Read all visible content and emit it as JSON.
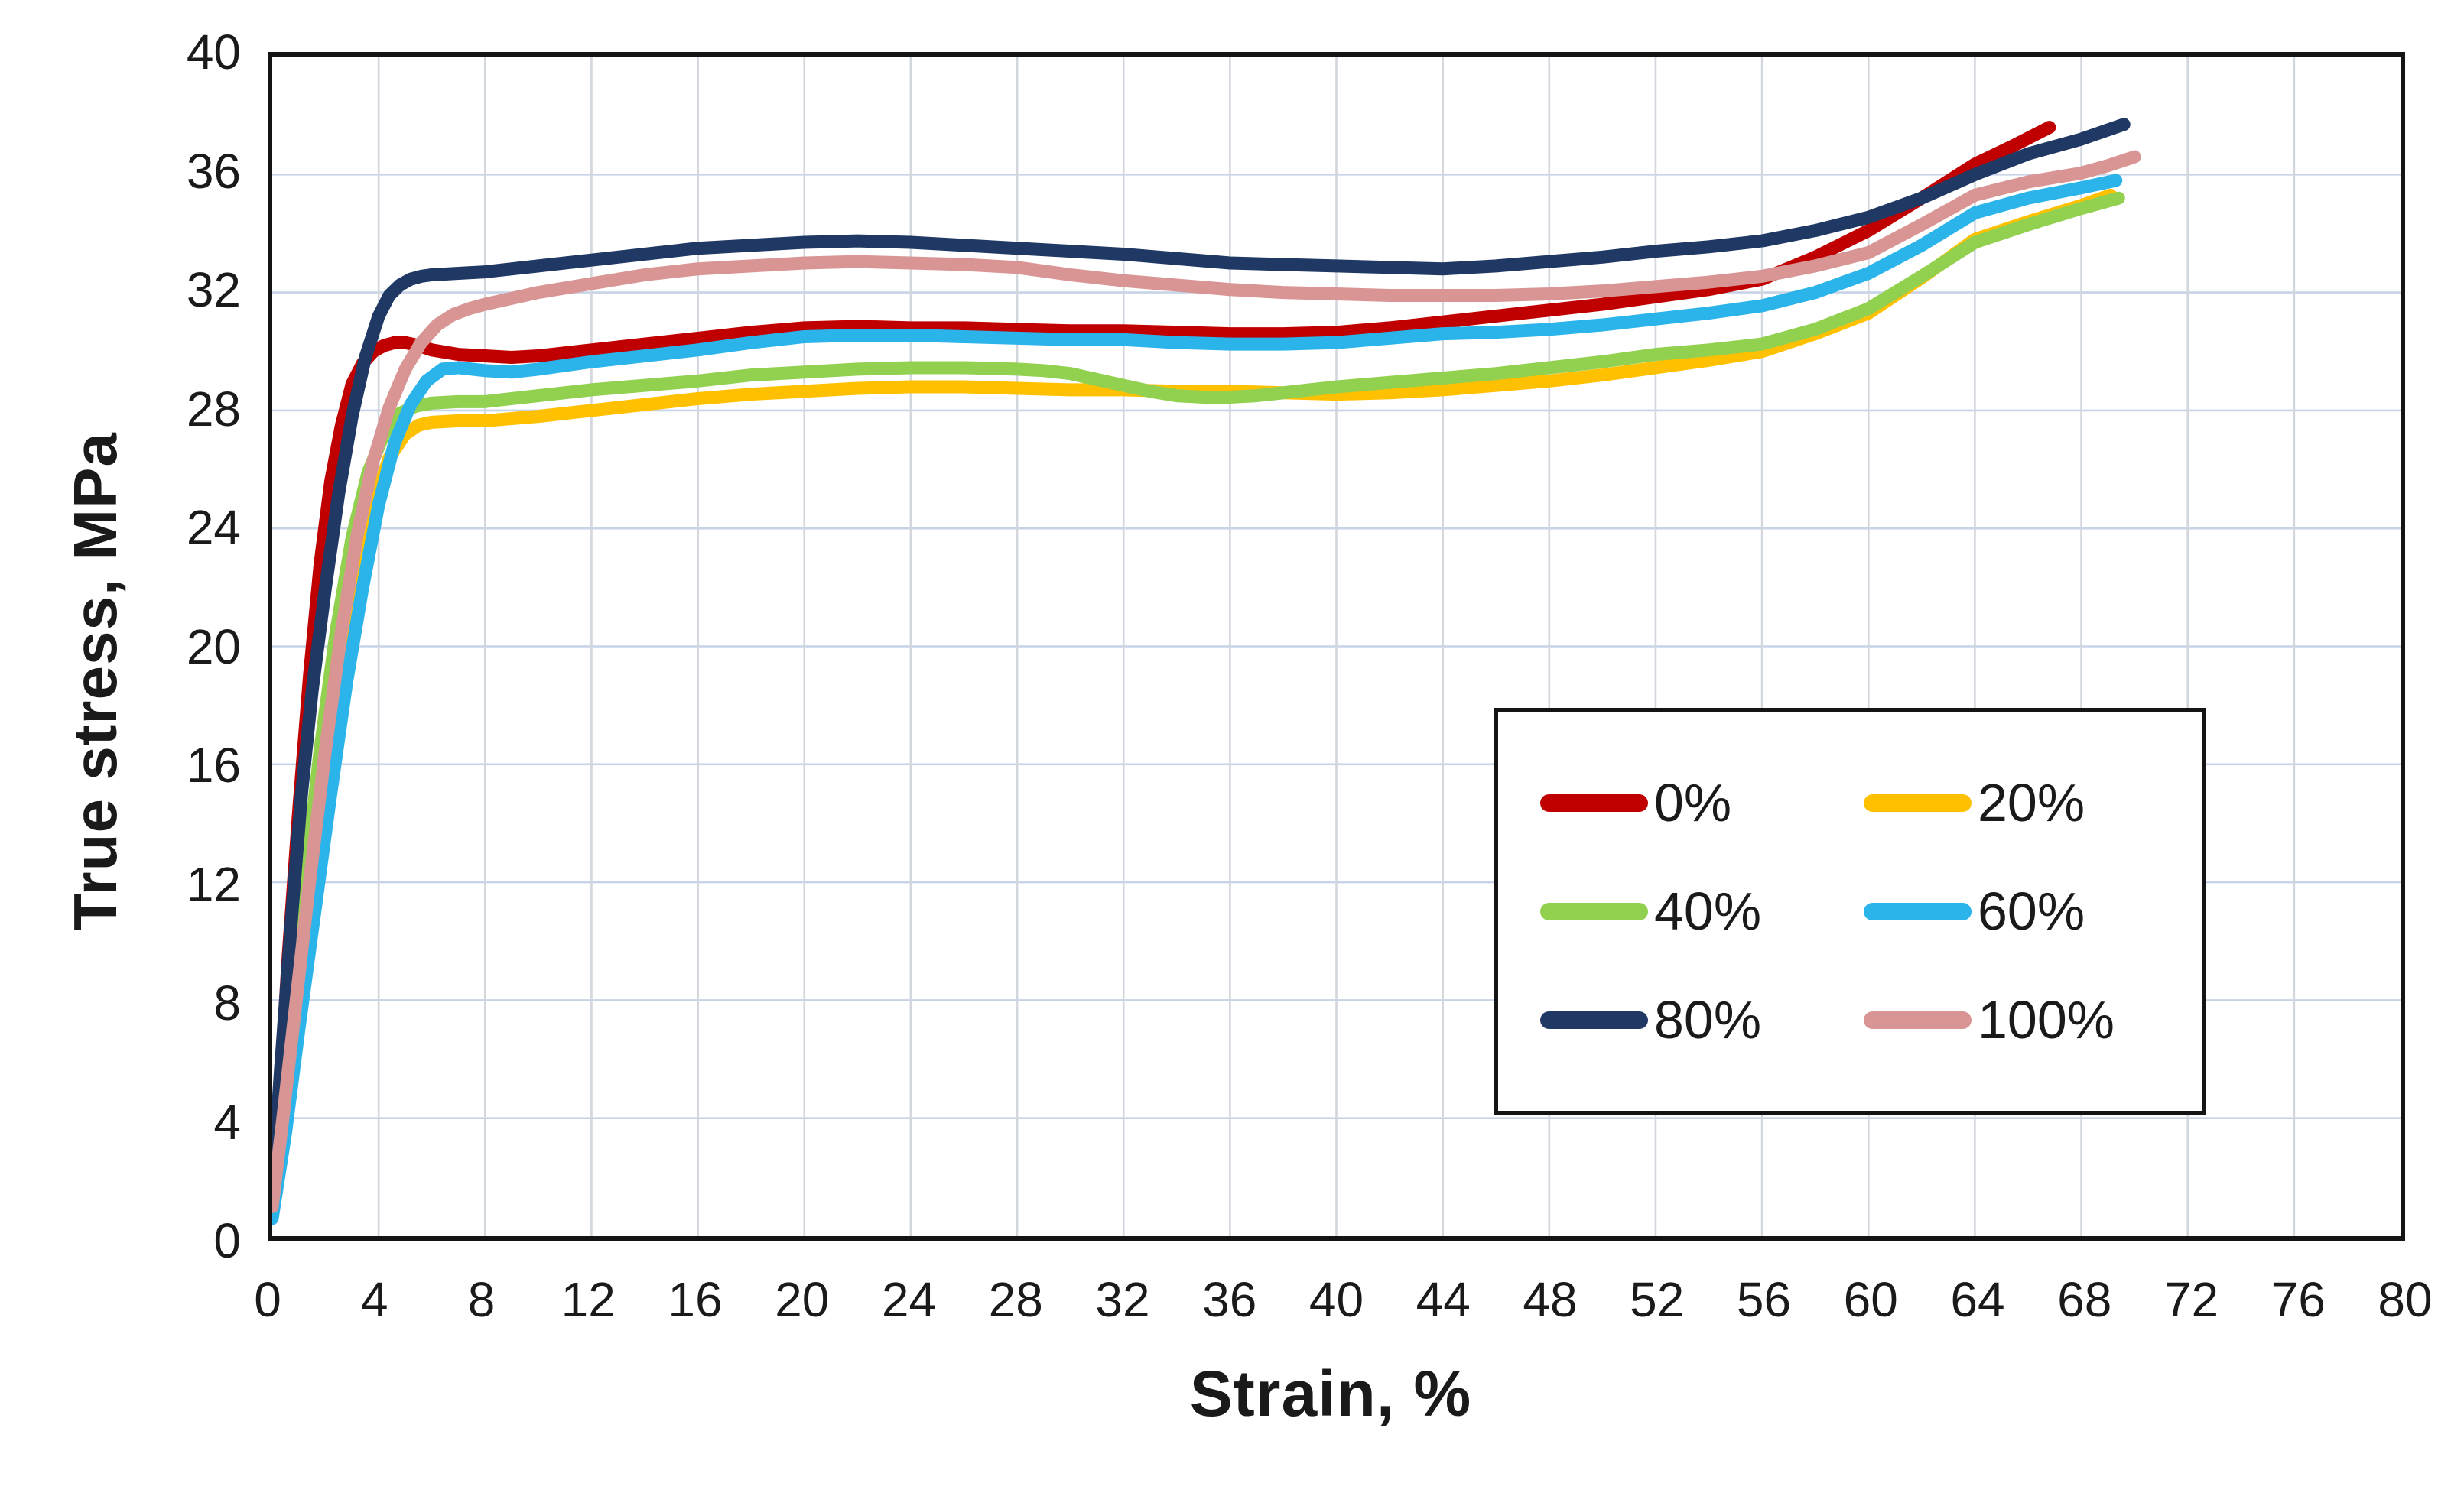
{
  "axes": {
    "x_title": "Strain, %",
    "y_title": "True stress, MPa"
  },
  "chart_data": {
    "type": "line",
    "title": "",
    "xlabel": "Strain, %",
    "ylabel": "True stress, MPa",
    "xlim": [
      0,
      80
    ],
    "ylim": [
      0,
      40
    ],
    "x_ticks": [
      0,
      4,
      8,
      12,
      16,
      20,
      24,
      28,
      32,
      36,
      40,
      44,
      48,
      52,
      56,
      60,
      64,
      68,
      72,
      76,
      80
    ],
    "y_ticks": [
      0,
      4,
      8,
      12,
      16,
      20,
      24,
      28,
      32,
      36,
      40
    ],
    "grid": true,
    "legend_position": "inside-lower-right",
    "series": [
      {
        "name": "0%",
        "color": "#C00000",
        "points": [
          [
            0,
            1.2
          ],
          [
            0.3,
            5
          ],
          [
            0.6,
            9.5
          ],
          [
            1,
            14.5
          ],
          [
            1.4,
            19
          ],
          [
            1.8,
            22.8
          ],
          [
            2.2,
            25.6
          ],
          [
            2.6,
            27.5
          ],
          [
            3,
            28.9
          ],
          [
            3.4,
            29.6
          ],
          [
            3.8,
            30.0
          ],
          [
            4.2,
            30.2
          ],
          [
            4.6,
            30.3
          ],
          [
            5,
            30.3
          ],
          [
            5.5,
            30.2
          ],
          [
            6,
            30.05
          ],
          [
            7,
            29.9
          ],
          [
            8,
            29.85
          ],
          [
            9,
            29.8
          ],
          [
            10,
            29.85
          ],
          [
            12,
            30.05
          ],
          [
            14,
            30.25
          ],
          [
            16,
            30.45
          ],
          [
            18,
            30.65
          ],
          [
            20,
            30.8
          ],
          [
            22,
            30.85
          ],
          [
            24,
            30.8
          ],
          [
            26,
            30.8
          ],
          [
            28,
            30.75
          ],
          [
            30,
            30.7
          ],
          [
            32,
            30.7
          ],
          [
            34,
            30.65
          ],
          [
            36,
            30.6
          ],
          [
            38,
            30.6
          ],
          [
            40,
            30.65
          ],
          [
            42,
            30.8
          ],
          [
            44,
            31.0
          ],
          [
            46,
            31.2
          ],
          [
            48,
            31.4
          ],
          [
            50,
            31.6
          ],
          [
            52,
            31.85
          ],
          [
            54,
            32.1
          ],
          [
            56,
            32.45
          ],
          [
            58,
            33.2
          ],
          [
            60,
            34.1
          ],
          [
            62,
            35.2
          ],
          [
            64,
            36.35
          ],
          [
            65.5,
            37.0
          ],
          [
            66.8,
            37.6
          ]
        ]
      },
      {
        "name": "20%",
        "color": "#FFC000",
        "points": [
          [
            0,
            0.7
          ],
          [
            0.4,
            3.5
          ],
          [
            0.9,
            7.5
          ],
          [
            1.4,
            11.5
          ],
          [
            2,
            15.5
          ],
          [
            2.6,
            19
          ],
          [
            3.2,
            22.2
          ],
          [
            3.8,
            24.8
          ],
          [
            4.4,
            26.4
          ],
          [
            5,
            27.2
          ],
          [
            5.5,
            27.5
          ],
          [
            6,
            27.6
          ],
          [
            7,
            27.65
          ],
          [
            8,
            27.65
          ],
          [
            10,
            27.8
          ],
          [
            12,
            28.0
          ],
          [
            14,
            28.2
          ],
          [
            16,
            28.4
          ],
          [
            18,
            28.55
          ],
          [
            20,
            28.65
          ],
          [
            22,
            28.75
          ],
          [
            24,
            28.8
          ],
          [
            26,
            28.8
          ],
          [
            28,
            28.75
          ],
          [
            30,
            28.7
          ],
          [
            32,
            28.7
          ],
          [
            34,
            28.65
          ],
          [
            36,
            28.65
          ],
          [
            38,
            28.6
          ],
          [
            40,
            28.55
          ],
          [
            42,
            28.6
          ],
          [
            44,
            28.7
          ],
          [
            46,
            28.85
          ],
          [
            48,
            29.0
          ],
          [
            50,
            29.2
          ],
          [
            52,
            29.45
          ],
          [
            54,
            29.7
          ],
          [
            56,
            30.0
          ],
          [
            58,
            30.6
          ],
          [
            60,
            31.3
          ],
          [
            62,
            32.5
          ],
          [
            64,
            33.8
          ],
          [
            66,
            34.4
          ],
          [
            68,
            34.95
          ],
          [
            69.1,
            35.3
          ]
        ]
      },
      {
        "name": "40%",
        "color": "#92D050",
        "points": [
          [
            0,
            0.8
          ],
          [
            0.4,
            4
          ],
          [
            0.8,
            8
          ],
          [
            1.3,
            12.5
          ],
          [
            1.8,
            16.5
          ],
          [
            2.4,
            20.5
          ],
          [
            3,
            23.7
          ],
          [
            3.6,
            25.9
          ],
          [
            4.2,
            27.2
          ],
          [
            4.8,
            27.9
          ],
          [
            5.4,
            28.15
          ],
          [
            6,
            28.25
          ],
          [
            7,
            28.3
          ],
          [
            8,
            28.3
          ],
          [
            10,
            28.5
          ],
          [
            12,
            28.7
          ],
          [
            14,
            28.85
          ],
          [
            16,
            29.0
          ],
          [
            18,
            29.2
          ],
          [
            20,
            29.3
          ],
          [
            22,
            29.4
          ],
          [
            24,
            29.45
          ],
          [
            26,
            29.45
          ],
          [
            28,
            29.4
          ],
          [
            29,
            29.35
          ],
          [
            30,
            29.25
          ],
          [
            31,
            29.05
          ],
          [
            32,
            28.85
          ],
          [
            33,
            28.65
          ],
          [
            34,
            28.5
          ],
          [
            35,
            28.45
          ],
          [
            36,
            28.45
          ],
          [
            37,
            28.5
          ],
          [
            38,
            28.6
          ],
          [
            40,
            28.8
          ],
          [
            42,
            28.95
          ],
          [
            44,
            29.1
          ],
          [
            46,
            29.25
          ],
          [
            48,
            29.45
          ],
          [
            50,
            29.65
          ],
          [
            52,
            29.9
          ],
          [
            54,
            30.05
          ],
          [
            56,
            30.25
          ],
          [
            58,
            30.75
          ],
          [
            60,
            31.45
          ],
          [
            62,
            32.55
          ],
          [
            64,
            33.7
          ],
          [
            66,
            34.3
          ],
          [
            68,
            34.85
          ],
          [
            69.4,
            35.2
          ]
        ]
      },
      {
        "name": "60%",
        "color": "#2BB4EA",
        "points": [
          [
            0,
            0.6
          ],
          [
            0.5,
            3.5
          ],
          [
            1,
            7
          ],
          [
            1.6,
            11
          ],
          [
            2.2,
            15
          ],
          [
            2.8,
            18.8
          ],
          [
            3.4,
            22
          ],
          [
            4,
            24.8
          ],
          [
            4.6,
            26.9
          ],
          [
            5.2,
            28.2
          ],
          [
            5.8,
            29.0
          ],
          [
            6.4,
            29.4
          ],
          [
            7,
            29.45
          ],
          [
            8,
            29.35
          ],
          [
            9,
            29.3
          ],
          [
            10,
            29.4
          ],
          [
            12,
            29.65
          ],
          [
            14,
            29.85
          ],
          [
            16,
            30.05
          ],
          [
            18,
            30.3
          ],
          [
            20,
            30.5
          ],
          [
            22,
            30.55
          ],
          [
            24,
            30.55
          ],
          [
            26,
            30.5
          ],
          [
            28,
            30.45
          ],
          [
            30,
            30.4
          ],
          [
            32,
            30.4
          ],
          [
            34,
            30.3
          ],
          [
            36,
            30.25
          ],
          [
            38,
            30.25
          ],
          [
            40,
            30.3
          ],
          [
            42,
            30.45
          ],
          [
            44,
            30.6
          ],
          [
            46,
            30.65
          ],
          [
            48,
            30.75
          ],
          [
            50,
            30.9
          ],
          [
            52,
            31.1
          ],
          [
            54,
            31.3
          ],
          [
            56,
            31.55
          ],
          [
            58,
            32.0
          ],
          [
            60,
            32.65
          ],
          [
            62,
            33.6
          ],
          [
            64,
            34.7
          ],
          [
            66,
            35.2
          ],
          [
            68,
            35.55
          ],
          [
            69.3,
            35.8
          ]
        ]
      },
      {
        "name": "80%",
        "color": "#1F3864",
        "points": [
          [
            0,
            1.5
          ],
          [
            0.3,
            5.5
          ],
          [
            0.7,
            10.5
          ],
          [
            1.1,
            15
          ],
          [
            1.5,
            18.5
          ],
          [
            2,
            22
          ],
          [
            2.5,
            25.2
          ],
          [
            3,
            27.8
          ],
          [
            3.5,
            29.8
          ],
          [
            4,
            31.2
          ],
          [
            4.4,
            31.9
          ],
          [
            4.8,
            32.25
          ],
          [
            5.2,
            32.45
          ],
          [
            5.6,
            32.55
          ],
          [
            6,
            32.6
          ],
          [
            7,
            32.65
          ],
          [
            8,
            32.7
          ],
          [
            10,
            32.9
          ],
          [
            12,
            33.1
          ],
          [
            14,
            33.3
          ],
          [
            16,
            33.5
          ],
          [
            18,
            33.6
          ],
          [
            20,
            33.7
          ],
          [
            22,
            33.75
          ],
          [
            24,
            33.7
          ],
          [
            26,
            33.6
          ],
          [
            28,
            33.5
          ],
          [
            30,
            33.4
          ],
          [
            32,
            33.3
          ],
          [
            34,
            33.15
          ],
          [
            36,
            33.0
          ],
          [
            38,
            32.95
          ],
          [
            40,
            32.9
          ],
          [
            42,
            32.85
          ],
          [
            44,
            32.8
          ],
          [
            46,
            32.9
          ],
          [
            48,
            33.05
          ],
          [
            50,
            33.2
          ],
          [
            52,
            33.4
          ],
          [
            54,
            33.55
          ],
          [
            56,
            33.75
          ],
          [
            58,
            34.1
          ],
          [
            60,
            34.55
          ],
          [
            62,
            35.2
          ],
          [
            64,
            36.0
          ],
          [
            66,
            36.7
          ],
          [
            68,
            37.2
          ],
          [
            69.6,
            37.7
          ]
        ]
      },
      {
        "name": "100%",
        "color": "#D99594",
        "points": [
          [
            0,
            1.0
          ],
          [
            0.4,
            4
          ],
          [
            0.9,
            8
          ],
          [
            1.4,
            12
          ],
          [
            2,
            16.5
          ],
          [
            2.6,
            20.5
          ],
          [
            3.2,
            23.8
          ],
          [
            3.8,
            26.3
          ],
          [
            4.4,
            28.1
          ],
          [
            5,
            29.4
          ],
          [
            5.6,
            30.3
          ],
          [
            6.2,
            30.9
          ],
          [
            6.8,
            31.25
          ],
          [
            7.4,
            31.45
          ],
          [
            8,
            31.6
          ],
          [
            10,
            32.0
          ],
          [
            12,
            32.3
          ],
          [
            14,
            32.6
          ],
          [
            16,
            32.8
          ],
          [
            18,
            32.9
          ],
          [
            20,
            33.0
          ],
          [
            22,
            33.05
          ],
          [
            24,
            33.0
          ],
          [
            26,
            32.95
          ],
          [
            28,
            32.85
          ],
          [
            30,
            32.6
          ],
          [
            32,
            32.4
          ],
          [
            34,
            32.25
          ],
          [
            36,
            32.1
          ],
          [
            38,
            32.0
          ],
          [
            40,
            31.95
          ],
          [
            42,
            31.9
          ],
          [
            44,
            31.9
          ],
          [
            46,
            31.9
          ],
          [
            48,
            31.95
          ],
          [
            50,
            32.05
          ],
          [
            52,
            32.2
          ],
          [
            54,
            32.35
          ],
          [
            56,
            32.55
          ],
          [
            58,
            32.9
          ],
          [
            60,
            33.35
          ],
          [
            62,
            34.3
          ],
          [
            64,
            35.3
          ],
          [
            66,
            35.75
          ],
          [
            68,
            36.05
          ],
          [
            69,
            36.3
          ],
          [
            70,
            36.6
          ]
        ]
      }
    ]
  }
}
